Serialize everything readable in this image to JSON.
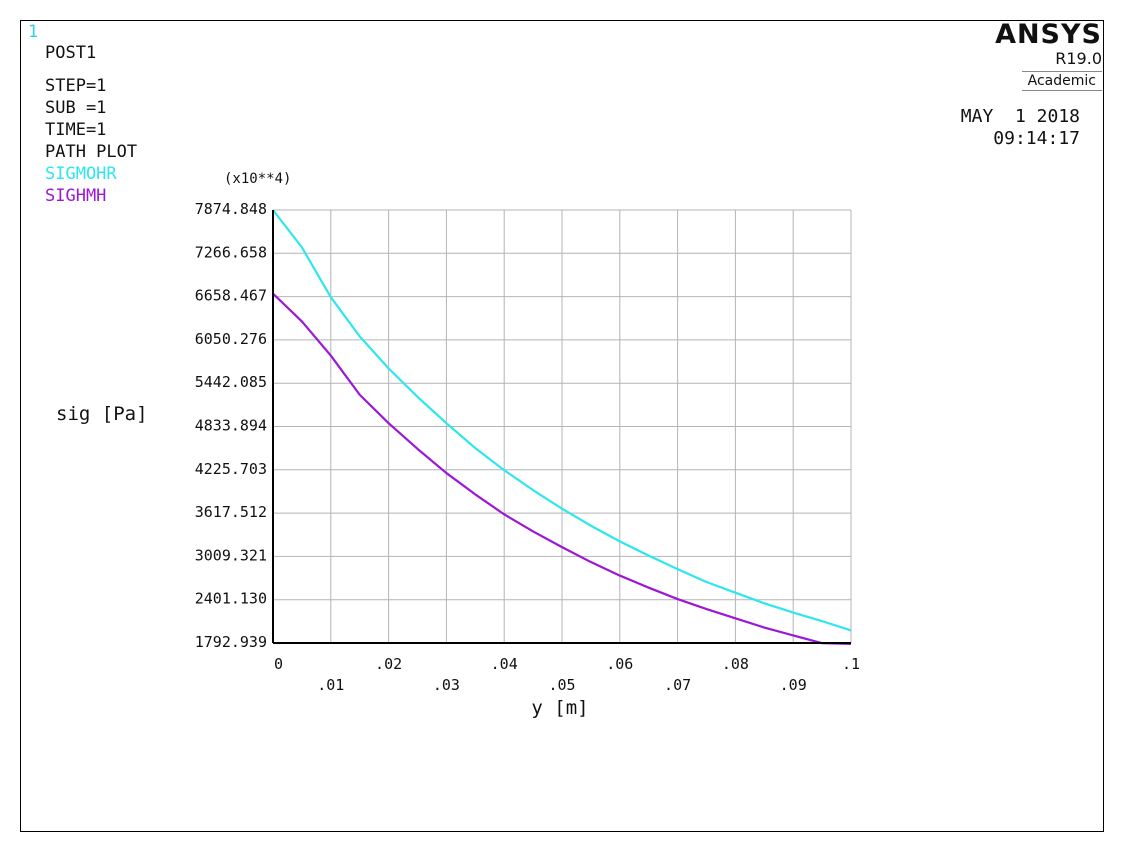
{
  "window_number": "1",
  "info": {
    "post": "POST1",
    "step": "STEP=1",
    "sub": "SUB =1",
    "time": "TIME=1",
    "plot_type": "PATH PLOT"
  },
  "brand": {
    "name": "ANSYS",
    "version": "R19.0",
    "edition": "Academic"
  },
  "date": {
    "day": "MAY  1 2018",
    "time": "09:14:17"
  },
  "colors": {
    "sigmohr": "#2ee6ee",
    "sighmh": "#9a18d6",
    "grid": "#b4b4b4",
    "axes": "#000000"
  },
  "chart_data": {
    "type": "line",
    "multiplier_label": "(x10**4)",
    "ylabel": "sig [Pa]",
    "xlabel": "y [m]",
    "xlim": [
      0,
      0.1
    ],
    "ylim": [
      1792.939,
      7874.848
    ],
    "grid": true,
    "y_ticks": [
      1792.939,
      2401.13,
      3009.321,
      3617.512,
      4225.703,
      4833.894,
      5442.085,
      6050.276,
      6658.467,
      7266.658,
      7874.848
    ],
    "y_tick_labels": [
      "1792.939",
      "2401.130",
      "3009.321",
      "3617.512",
      "4225.703",
      "4833.894",
      "5442.085",
      "6050.276",
      "6658.467",
      "7266.658",
      "7874.848"
    ],
    "x_ticks": [
      0,
      0.01,
      0.02,
      0.03,
      0.04,
      0.05,
      0.06,
      0.07,
      0.08,
      0.09,
      0.1
    ],
    "x_tick_labels": [
      "0",
      ".01",
      ".02",
      ".03",
      ".04",
      ".05",
      ".06",
      ".07",
      ".08",
      ".09",
      ".1"
    ],
    "x": [
      0,
      0.005,
      0.01,
      0.015,
      0.02,
      0.025,
      0.03,
      0.035,
      0.04,
      0.045,
      0.05,
      0.055,
      0.06,
      0.065,
      0.07,
      0.075,
      0.08,
      0.085,
      0.09,
      0.095,
      0.1
    ],
    "series": [
      {
        "name": "SIGMOHR",
        "values": [
          7875,
          7350,
          6650,
          6100,
          5650,
          5250,
          4880,
          4530,
          4220,
          3940,
          3680,
          3440,
          3220,
          3020,
          2830,
          2650,
          2500,
          2350,
          2220,
          2100,
          1970
        ]
      },
      {
        "name": "SIGHMH",
        "values": [
          6700,
          6310,
          5830,
          5280,
          4880,
          4520,
          4180,
          3880,
          3600,
          3360,
          3140,
          2930,
          2740,
          2570,
          2410,
          2270,
          2140,
          2010,
          1900,
          1790,
          1780
        ]
      }
    ]
  }
}
